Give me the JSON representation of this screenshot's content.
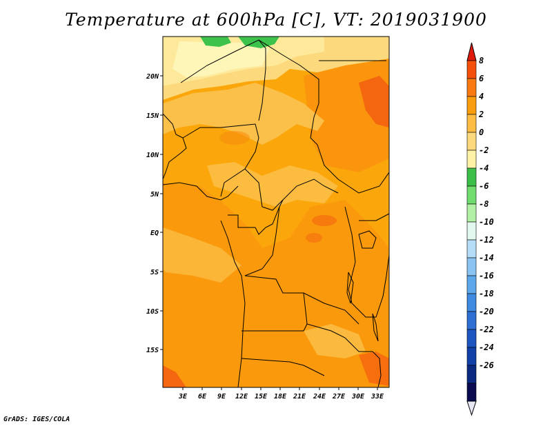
{
  "title": "Temperature at 600hPa [C], VT: 2019031900",
  "footer": "GrADS: IGES/COLA",
  "map": {
    "lat_labels": [
      "20N",
      "15N",
      "10N",
      "5N",
      "EQ",
      "5S",
      "10S",
      "15S"
    ],
    "lon_labels": [
      "3E",
      "6E",
      "9E",
      "12E",
      "15E",
      "18E",
      "21E",
      "24E",
      "27E",
      "30E",
      "33E"
    ],
    "colors": {
      "warm_orange": "#fba60a",
      "hot_orange": "#f98e0e",
      "hottest": "#f4660f",
      "pale_yellow": "#fbd97c",
      "lighter_yellow": "#fee99b",
      "cream": "#fef6b8",
      "green": "#3dc34b",
      "border": "#000000"
    }
  },
  "colorbar": {
    "labels": [
      "8",
      "6",
      "4",
      "2",
      "0",
      "-2",
      "-4",
      "-6",
      "-8",
      "-10",
      "-12",
      "-14",
      "-16",
      "-18",
      "-20",
      "-22",
      "-24",
      "-26"
    ],
    "colors": [
      "#e11b0c",
      "#f4500c",
      "#f97a10",
      "#fa9d0c",
      "#fcbd42",
      "#fbd97c",
      "#fef2a7",
      "#3cbf48",
      "#6fdc6d",
      "#b2f0a5",
      "#e2f8ee",
      "#b6ddf8",
      "#8ac4f2",
      "#5da7eb",
      "#3d8ae0",
      "#2d6fd3",
      "#1d55c0",
      "#1040a8",
      "#0a2a82",
      "#0a0a50",
      "#e6e6f5"
    ]
  }
}
